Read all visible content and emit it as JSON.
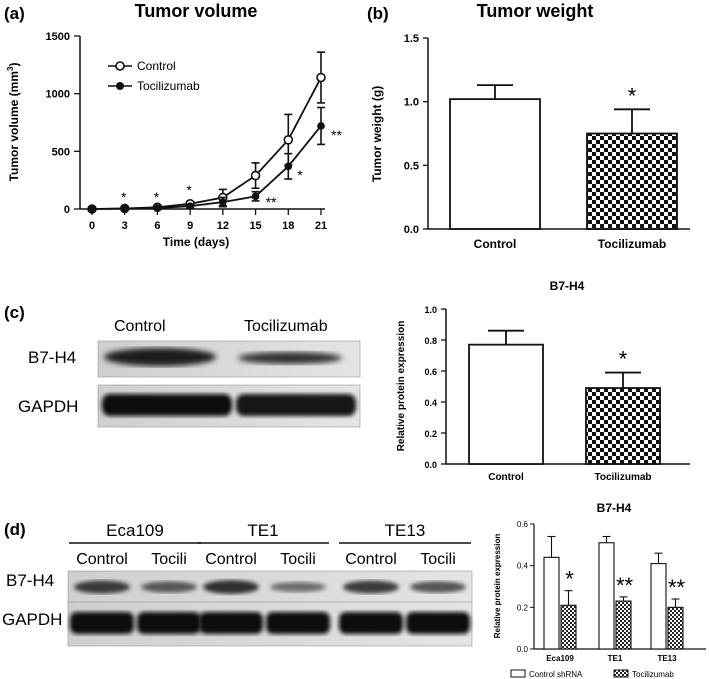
{
  "panel_labels": {
    "a": "(a)",
    "b": "(b)",
    "c": "(c)",
    "d": "(d)"
  },
  "chart_data": [
    {
      "id": "a",
      "type": "line",
      "title": "Tumor volume",
      "xlabel": "Time (days)",
      "ylabel_main": "Tumor volume (mm",
      "ylabel_sup": "3",
      "ylabel_end": ")",
      "x": [
        0,
        3,
        6,
        9,
        12,
        15,
        18,
        21
      ],
      "xlim": [
        0,
        21
      ],
      "ylim": [
        0,
        1500
      ],
      "yticks": [
        0,
        500,
        1000,
        1500
      ],
      "series": [
        {
          "name": "Control",
          "marker": "open-circle",
          "values": [
            0,
            5,
            15,
            45,
            100,
            290,
            600,
            1140
          ],
          "errors": [
            0,
            5,
            10,
            20,
            70,
            110,
            220,
            220
          ]
        },
        {
          "name": "Tocilizumab",
          "marker": "filled-circle",
          "values": [
            0,
            3,
            8,
            25,
            60,
            110,
            370,
            720
          ],
          "errors": [
            0,
            3,
            5,
            15,
            40,
            40,
            110,
            160
          ]
        }
      ],
      "annotations": [
        {
          "x": 3,
          "text": "*"
        },
        {
          "x": 6,
          "text": "*"
        },
        {
          "x": 9,
          "text": "*"
        },
        {
          "x": 15,
          "text": "**"
        },
        {
          "x": 18,
          "text": "*"
        },
        {
          "x": 21,
          "text": "**"
        }
      ],
      "legend": "top-left"
    },
    {
      "id": "b",
      "type": "bar",
      "title": "Tumor weight",
      "ylabel": "Tumor weight (g)",
      "categories": [
        "Control",
        "Tocilizumab"
      ],
      "values": [
        1.02,
        0.75
      ],
      "errors": [
        0.11,
        0.19
      ],
      "ylim": [
        0,
        1.5
      ],
      "yticks": [
        "0.0",
        "0.5",
        "1.0",
        "1.5"
      ],
      "significance": [
        "",
        "*"
      ]
    },
    {
      "id": "c",
      "type": "bar",
      "title": "B7-H4",
      "ylabel": "Relative protein expression",
      "categories": [
        "Control",
        "Tocilizumab"
      ],
      "values": [
        0.77,
        0.49
      ],
      "errors": [
        0.09,
        0.1
      ],
      "ylim": [
        0,
        1.0
      ],
      "yticks": [
        "0.0",
        "0.2",
        "0.4",
        "0.6",
        "0.8",
        "1.0"
      ],
      "significance": [
        "",
        "*"
      ]
    },
    {
      "id": "d",
      "type": "bar",
      "title": "B7-H4",
      "ylabel": "Relative protein expression",
      "categories": [
        "Eca109",
        "TE1",
        "TE13"
      ],
      "series": [
        {
          "name": "Control shRNA",
          "values": [
            0.44,
            0.51,
            0.41
          ],
          "errors": [
            0.1,
            0.03,
            0.05
          ]
        },
        {
          "name": "Tocilizumab",
          "values": [
            0.21,
            0.23,
            0.2
          ],
          "errors": [
            0.07,
            0.02,
            0.04
          ]
        }
      ],
      "ylim": [
        0,
        0.6
      ],
      "yticks": [
        "0.0",
        "0.2",
        "0.4",
        "0.6"
      ],
      "significance": [
        "*",
        "**",
        "**"
      ],
      "legend": "bottom"
    }
  ],
  "blot_c": {
    "headers": [
      "Control",
      "Tocilizumab"
    ],
    "rows": [
      "B7-H4",
      "GAPDH"
    ]
  },
  "blot_d": {
    "groups": [
      "Eca109",
      "TE1",
      "TE13"
    ],
    "lanes": [
      "Control",
      "Tocili",
      "Control",
      "Tocili",
      "Control",
      "Tocili"
    ],
    "rows": [
      "B7-H4",
      "GAPDH"
    ]
  }
}
